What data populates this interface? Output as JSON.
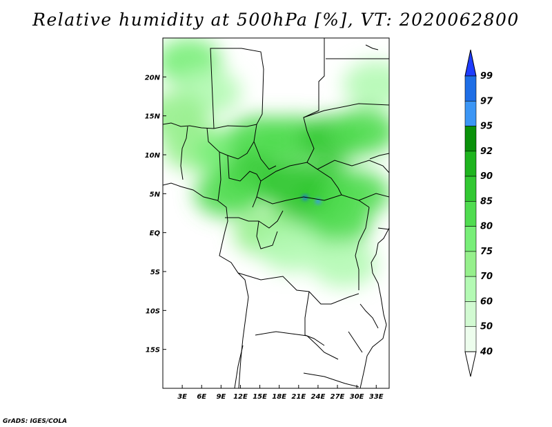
{
  "title": "Relative humidity at 500hPa [%], VT: 2020062800",
  "credit": "GrADS: IGES/COLA",
  "map": {
    "projection": "latlon",
    "lon_range": [
      0,
      35
    ],
    "lat_range": [
      -20,
      25
    ],
    "lat_ticks": [
      "20N",
      "15N",
      "10N",
      "5N",
      "EQ",
      "5S",
      "10S",
      "15S"
    ],
    "lon_ticks": [
      "3E",
      "6E",
      "9E",
      "12E",
      "15E",
      "18E",
      "21E",
      "24E",
      "27E",
      "30E",
      "33E"
    ]
  },
  "colorbar": {
    "levels": [
      "99",
      "97",
      "95",
      "92",
      "90",
      "85",
      "80",
      "75",
      "70",
      "60",
      "50",
      "40"
    ],
    "colors": [
      "#1e3cff",
      "#1e6ee6",
      "#3c96f5",
      "#0a910a",
      "#1eb41e",
      "#32c832",
      "#50dc50",
      "#78ee78",
      "#96f08c",
      "#b4fab4",
      "#d2fad2",
      "#edfded"
    ]
  },
  "humidity_field": [
    {
      "lon": 4,
      "lat": 22,
      "rh": 75
    },
    {
      "lon": 7,
      "lat": 18,
      "rh": 60
    },
    {
      "lon": 2,
      "lat": 15,
      "rh": 70
    },
    {
      "lon": 5,
      "lat": 11,
      "rh": 70
    },
    {
      "lon": 10,
      "lat": 10,
      "rh": 75
    },
    {
      "lon": 15,
      "lat": 12,
      "rh": 80
    },
    {
      "lon": 20,
      "lat": 12,
      "rh": 80
    },
    {
      "lon": 26,
      "lat": 12,
      "rh": 85
    },
    {
      "lon": 31,
      "lat": 13,
      "rh": 80
    },
    {
      "lon": 33,
      "lat": 19,
      "rh": 60
    },
    {
      "lon": 14,
      "lat": 7,
      "rh": 85
    },
    {
      "lon": 20,
      "lat": 6,
      "rh": 85
    },
    {
      "lon": 25,
      "lat": 6,
      "rh": 85
    },
    {
      "lon": 30,
      "lat": 5,
      "rh": 80
    },
    {
      "lon": 10,
      "lat": 5,
      "rh": 80
    },
    {
      "lon": 22,
      "lat": 2,
      "rh": 85
    },
    {
      "lon": 27,
      "lat": 1,
      "rh": 80
    },
    {
      "lon": 16,
      "lat": 0,
      "rh": 70
    },
    {
      "lon": 20,
      "lat": -2,
      "rh": 60
    },
    {
      "lon": 28,
      "lat": -4,
      "rh": 60
    },
    {
      "lon": 22,
      "lat": 4.5,
      "rh": 97
    },
    {
      "lon": 24,
      "lat": 4,
      "rh": 95
    }
  ]
}
